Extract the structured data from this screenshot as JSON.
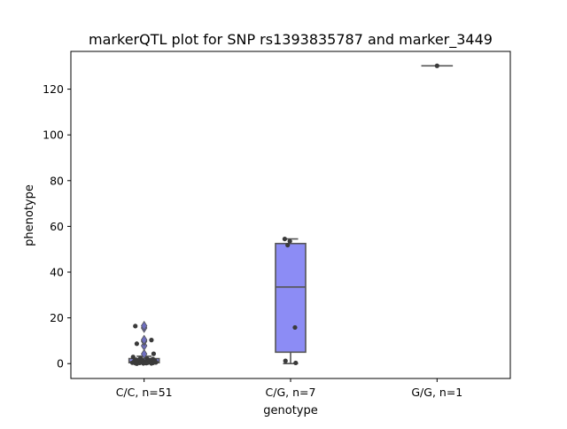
{
  "chart_data": {
    "type": "box",
    "title": "markerQTL plot for SNP rs1393835787 and marker_3449",
    "xlabel": "genotype",
    "ylabel": "phenotype",
    "ylim": [
      -6.5,
      136.5
    ],
    "yticks": [
      0,
      20,
      40,
      60,
      80,
      100,
      120
    ],
    "categories": [
      "C/C, n=51",
      "C/G, n=7",
      "G/G, n=1"
    ],
    "box_color": "#8c8cf5",
    "edge_color": "#555555",
    "point_color": "#3a3a3a",
    "groups": [
      {
        "category": "C/C, n=51",
        "q1": 0.4,
        "median": 0.8,
        "q3": 2.2,
        "whisker_low": 0,
        "whisker_high": 3.2,
        "outliers": [
          4.2,
          7.8,
          9.8,
          10.4,
          15.6,
          16.5
        ],
        "points": [
          {
            "y": 16.4,
            "jitter": -0.12
          },
          {
            "y": 10.3,
            "jitter": 0.1
          },
          {
            "y": 8.7,
            "jitter": -0.1
          },
          {
            "y": 4.3,
            "jitter": 0.13
          },
          {
            "y": 2.9,
            "jitter": -0.15
          },
          {
            "y": 2.4,
            "jitter": -0.05
          },
          {
            "y": 2.2,
            "jitter": 0.04
          },
          {
            "y": 2.0,
            "jitter": 0.12
          },
          {
            "y": 1.7,
            "jitter": -0.11
          },
          {
            "y": 1.5,
            "jitter": 0.08
          },
          {
            "y": 1.3,
            "jitter": -0.02
          },
          {
            "y": 1.2,
            "jitter": 0.15
          },
          {
            "y": 1.1,
            "jitter": -0.13
          },
          {
            "y": 1.0,
            "jitter": 0.06
          },
          {
            "y": 0.9,
            "jitter": -0.07
          },
          {
            "y": 0.9,
            "jitter": 0.11
          },
          {
            "y": 0.8,
            "jitter": 0.0
          },
          {
            "y": 0.8,
            "jitter": -0.14
          },
          {
            "y": 0.7,
            "jitter": 0.14
          },
          {
            "y": 0.7,
            "jitter": -0.04
          },
          {
            "y": 0.6,
            "jitter": 0.09
          },
          {
            "y": 0.6,
            "jitter": -0.09
          },
          {
            "y": 0.5,
            "jitter": 0.02
          },
          {
            "y": 0.5,
            "jitter": 0.16
          },
          {
            "y": 0.4,
            "jitter": -0.16
          },
          {
            "y": 0.4,
            "jitter": 0.05
          },
          {
            "y": 0.3,
            "jitter": -0.06
          },
          {
            "y": 0.3,
            "jitter": 0.12
          },
          {
            "y": 0.2,
            "jitter": -0.12
          },
          {
            "y": 0.2,
            "jitter": 0.03
          },
          {
            "y": 0.1,
            "jitter": -0.01
          },
          {
            "y": 0.1,
            "jitter": 0.1
          },
          {
            "y": 0.0,
            "jitter": -0.1
          }
        ]
      },
      {
        "category": "C/G, n=7",
        "q1": 5,
        "median": 33.5,
        "q3": 52.5,
        "whisker_low": 0,
        "whisker_high": 54.5,
        "outliers": [],
        "points": [
          {
            "y": 54.5,
            "jitter": -0.08
          },
          {
            "y": 53.5,
            "jitter": -0.01
          },
          {
            "y": 51.8,
            "jitter": -0.04
          },
          {
            "y": 15.8,
            "jitter": 0.06
          },
          {
            "y": 1.2,
            "jitter": -0.07
          },
          {
            "y": 0.3,
            "jitter": 0.07
          }
        ]
      },
      {
        "category": "G/G, n=1",
        "q1": 130.2,
        "median": 130.2,
        "q3": 130.2,
        "whisker_low": 130.2,
        "whisker_high": 130.2,
        "outliers": [],
        "points": [
          {
            "y": 130.2,
            "jitter": 0.0
          }
        ]
      }
    ]
  }
}
